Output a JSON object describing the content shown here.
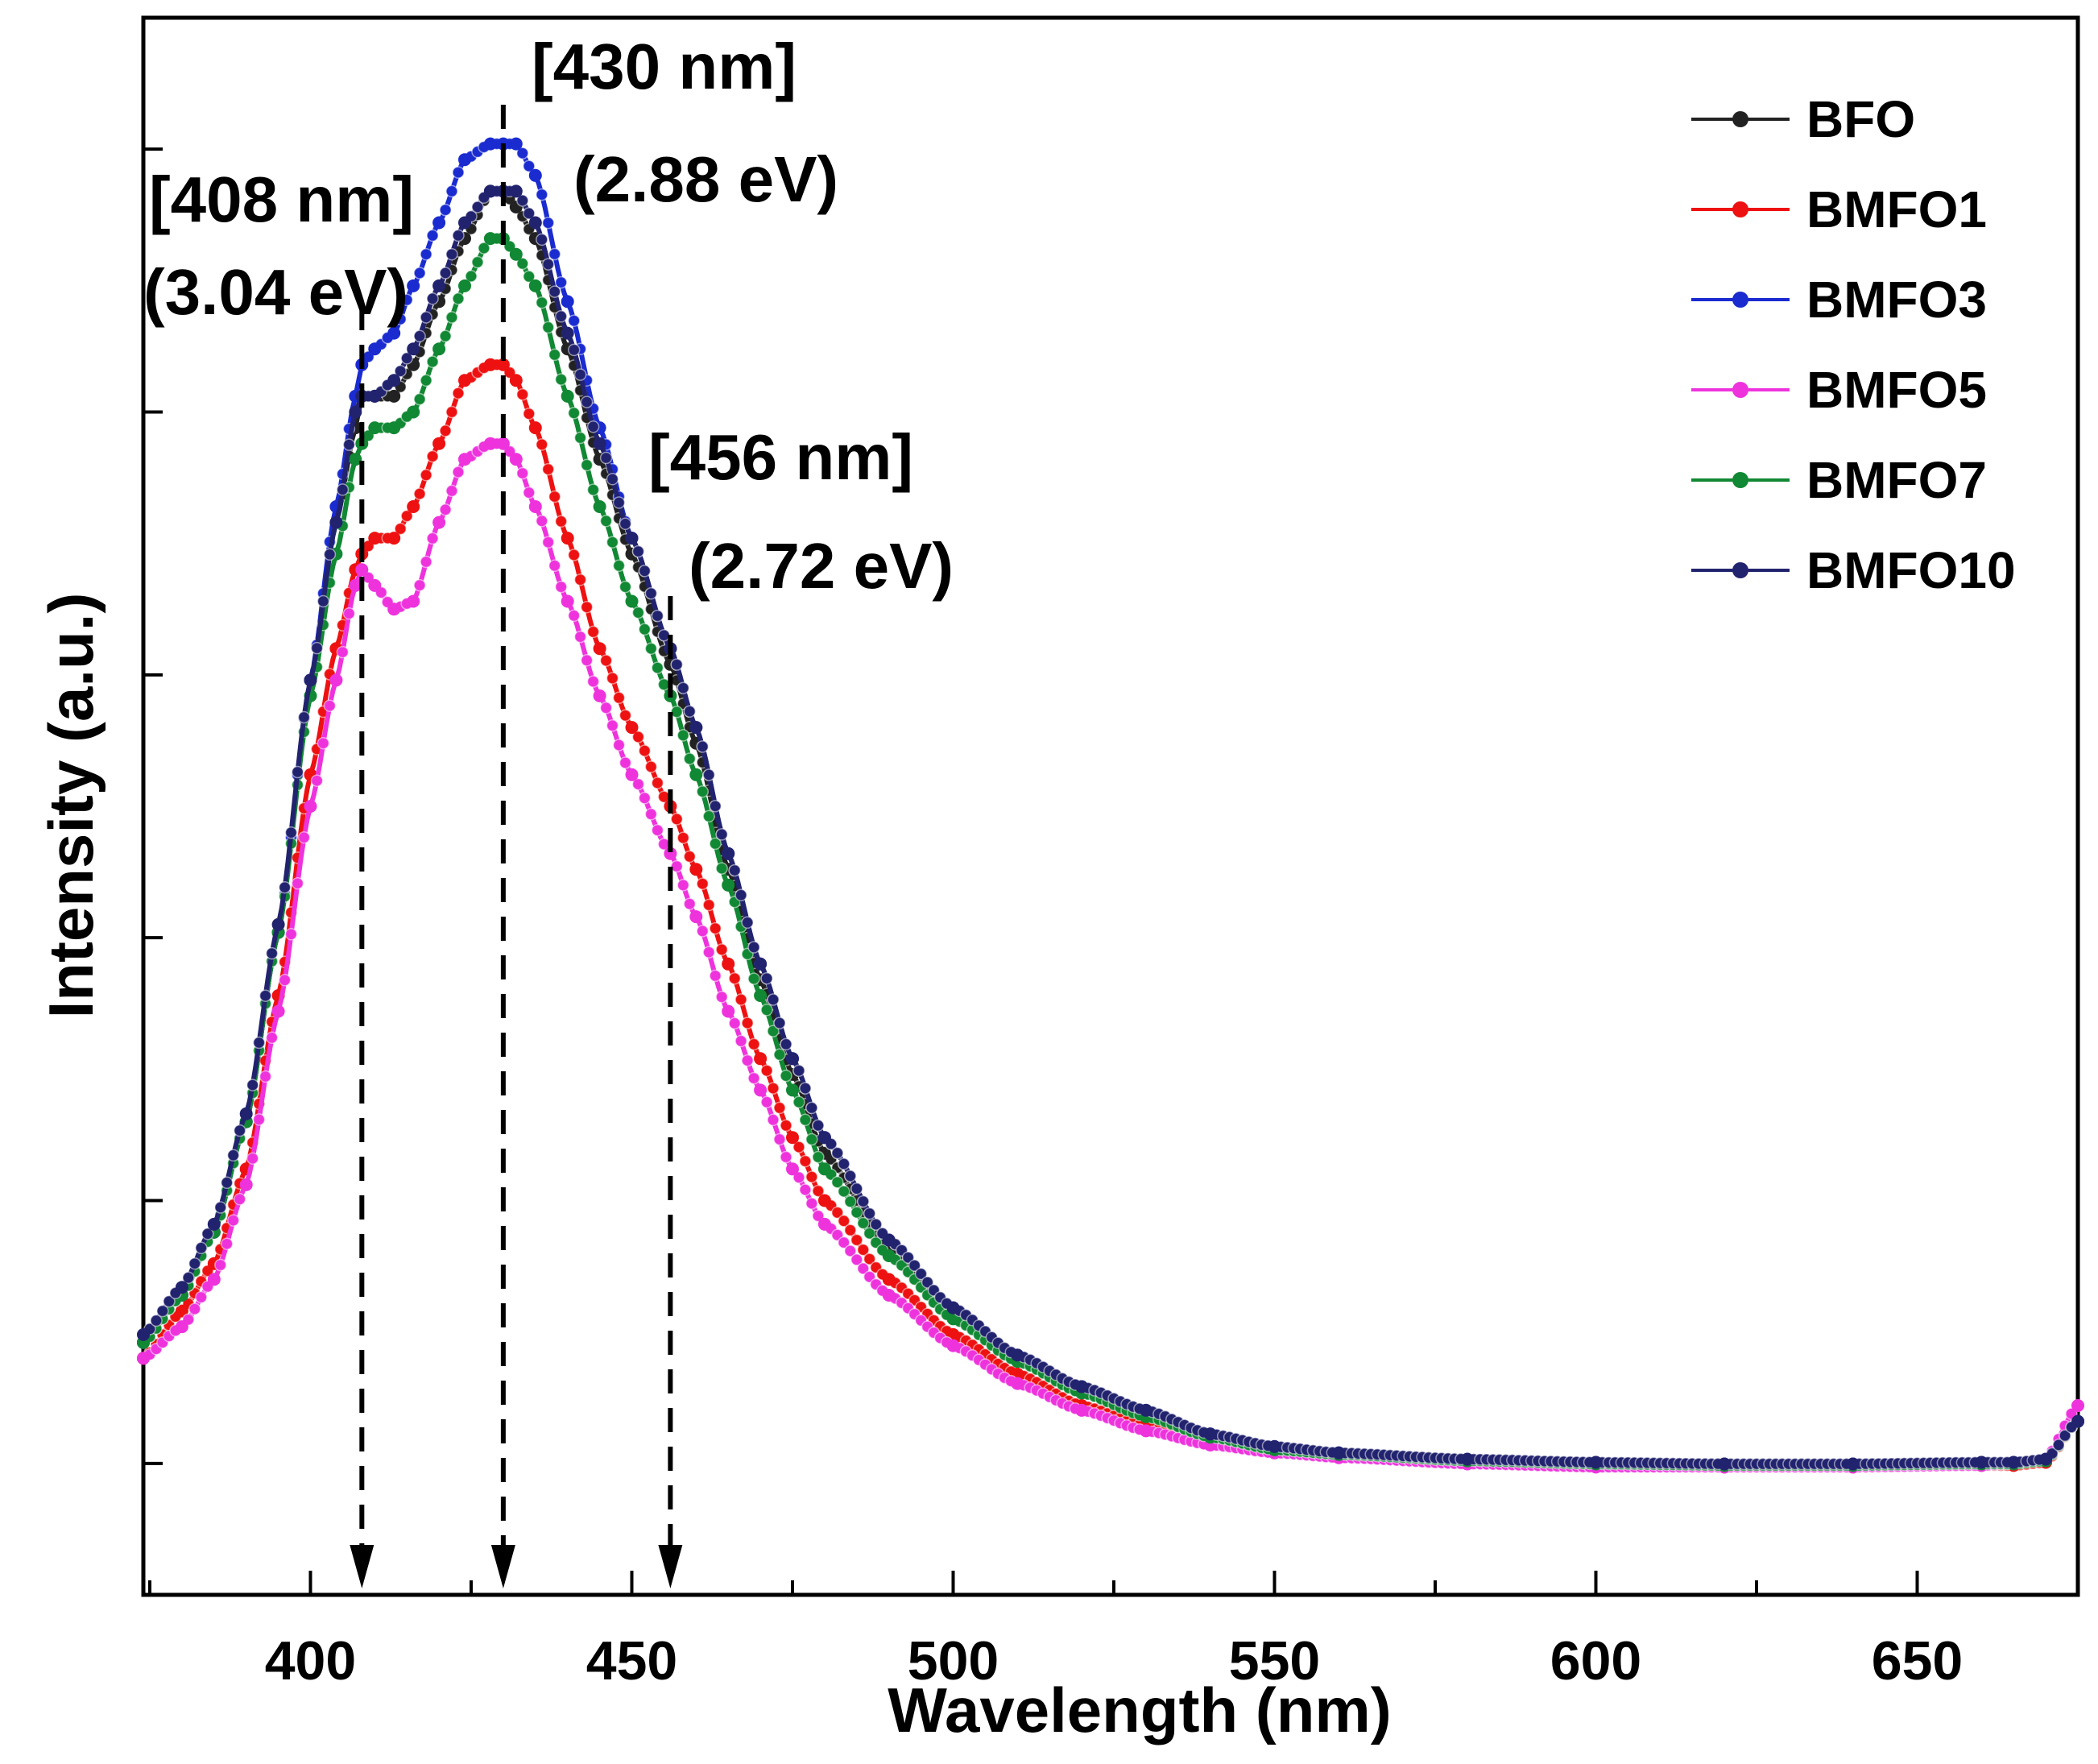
{
  "chart_data": {
    "type": "line",
    "title": "",
    "xlabel": "Wavelength (nm)",
    "ylabel": "Intensity (a.u.)",
    "xlim": [
      374,
      675
    ],
    "ylim": [
      0,
      1.0
    ],
    "grid": false,
    "legend_position": "top-right",
    "xticks": [
      400,
      450,
      500,
      550,
      600,
      650
    ],
    "xtick_labels": [
      "400",
      "450",
      "500",
      "550",
      "600",
      "650"
    ],
    "yticks_unlabeled": [
      0.0833,
      0.25,
      0.4167,
      0.5833,
      0.75,
      0.9167
    ],
    "x": [
      374,
      380,
      385,
      390,
      395,
      400,
      404,
      407,
      408,
      410,
      413,
      416,
      420,
      424,
      428,
      430,
      432,
      435,
      440,
      445,
      450,
      456,
      460,
      465,
      470,
      475,
      480,
      490,
      500,
      510,
      520,
      530,
      540,
      550,
      560,
      580,
      600,
      620,
      640,
      660,
      665,
      670,
      675
    ],
    "series": [
      {
        "name": "BFO",
        "color": "#222222",
        "values": [
          0.16,
          0.19,
          0.23,
          0.3,
          0.42,
          0.58,
          0.68,
          0.74,
          0.76,
          0.76,
          0.76,
          0.78,
          0.82,
          0.86,
          0.89,
          0.89,
          0.88,
          0.86,
          0.79,
          0.72,
          0.66,
          0.59,
          0.54,
          0.46,
          0.39,
          0.33,
          0.28,
          0.22,
          0.18,
          0.15,
          0.13,
          0.115,
          0.1,
          0.093,
          0.09,
          0.085,
          0.083,
          0.082,
          0.082,
          0.083,
          0.083,
          0.085,
          0.11
        ]
      },
      {
        "name": "BMFO1",
        "color": "#ee1111",
        "values": [
          0.15,
          0.18,
          0.21,
          0.27,
          0.38,
          0.52,
          0.6,
          0.65,
          0.66,
          0.67,
          0.67,
          0.69,
          0.73,
          0.77,
          0.78,
          0.78,
          0.77,
          0.74,
          0.67,
          0.6,
          0.55,
          0.5,
          0.46,
          0.4,
          0.34,
          0.29,
          0.25,
          0.2,
          0.165,
          0.14,
          0.12,
          0.107,
          0.097,
          0.091,
          0.088,
          0.084,
          0.082,
          0.081,
          0.081,
          0.082,
          0.082,
          0.084,
          0.11
        ]
      },
      {
        "name": "BMFO3",
        "color": "#1a2bd0",
        "values": [
          0.16,
          0.19,
          0.23,
          0.3,
          0.42,
          0.58,
          0.69,
          0.76,
          0.78,
          0.79,
          0.8,
          0.83,
          0.87,
          0.91,
          0.92,
          0.92,
          0.92,
          0.9,
          0.82,
          0.74,
          0.67,
          0.6,
          0.55,
          0.47,
          0.4,
          0.34,
          0.29,
          0.225,
          0.182,
          0.152,
          0.132,
          0.117,
          0.102,
          0.094,
          0.09,
          0.086,
          0.084,
          0.083,
          0.083,
          0.084,
          0.084,
          0.086,
          0.11
        ]
      },
      {
        "name": "BMFO5",
        "color": "#ee33dd",
        "values": [
          0.15,
          0.17,
          0.2,
          0.26,
          0.37,
          0.5,
          0.58,
          0.64,
          0.65,
          0.64,
          0.625,
          0.63,
          0.68,
          0.72,
          0.73,
          0.73,
          0.72,
          0.69,
          0.63,
          0.57,
          0.52,
          0.47,
          0.43,
          0.37,
          0.32,
          0.27,
          0.235,
          0.19,
          0.158,
          0.134,
          0.117,
          0.104,
          0.095,
          0.09,
          0.087,
          0.083,
          0.081,
          0.081,
          0.081,
          0.082,
          0.083,
          0.086,
          0.12
        ]
      },
      {
        "name": "BMFO7",
        "color": "#118833",
        "values": [
          0.16,
          0.19,
          0.23,
          0.3,
          0.42,
          0.57,
          0.66,
          0.72,
          0.73,
          0.74,
          0.74,
          0.75,
          0.79,
          0.83,
          0.86,
          0.86,
          0.85,
          0.83,
          0.76,
          0.69,
          0.63,
          0.57,
          0.52,
          0.45,
          0.38,
          0.32,
          0.27,
          0.215,
          0.175,
          0.148,
          0.128,
          0.113,
          0.1,
          0.092,
          0.089,
          0.085,
          0.083,
          0.082,
          0.082,
          0.083,
          0.083,
          0.085,
          0.11
        ]
      },
      {
        "name": "BMFO10",
        "color": "#22236e",
        "values": [
          0.165,
          0.195,
          0.235,
          0.305,
          0.425,
          0.58,
          0.68,
          0.75,
          0.76,
          0.76,
          0.77,
          0.79,
          0.83,
          0.87,
          0.89,
          0.89,
          0.89,
          0.87,
          0.8,
          0.73,
          0.67,
          0.6,
          0.55,
          0.47,
          0.4,
          0.34,
          0.29,
          0.225,
          0.182,
          0.152,
          0.132,
          0.117,
          0.102,
          0.094,
          0.09,
          0.086,
          0.084,
          0.083,
          0.083,
          0.084,
          0.084,
          0.086,
          0.11
        ]
      }
    ],
    "annotations": [
      {
        "x": 408,
        "lines": [
          "[408 nm]",
          "(3.04 eV)"
        ]
      },
      {
        "x": 430,
        "lines": [
          "[430 nm]",
          "(2.88 eV)"
        ]
      },
      {
        "x": 456,
        "lines": [
          "[456 nm]",
          "(2.72 eV)"
        ]
      }
    ]
  }
}
